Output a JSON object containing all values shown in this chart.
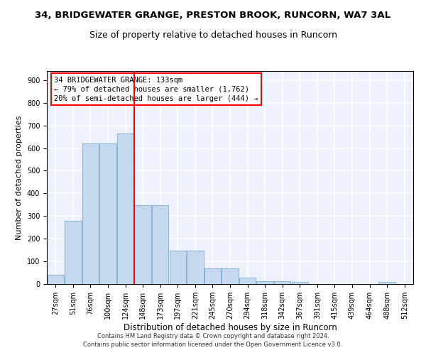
{
  "title": "34, BRIDGEWATER GRANGE, PRESTON BROOK, RUNCORN, WA7 3AL",
  "subtitle": "Size of property relative to detached houses in Runcorn",
  "xlabel": "Distribution of detached houses by size in Runcorn",
  "ylabel": "Number of detached properties",
  "bar_labels": [
    "27sqm",
    "51sqm",
    "76sqm",
    "100sqm",
    "124sqm",
    "148sqm",
    "173sqm",
    "197sqm",
    "221sqm",
    "245sqm",
    "270sqm",
    "294sqm",
    "318sqm",
    "342sqm",
    "367sqm",
    "391sqm",
    "415sqm",
    "439sqm",
    "464sqm",
    "488sqm",
    "512sqm"
  ],
  "bar_values": [
    42,
    280,
    620,
    620,
    665,
    348,
    348,
    148,
    148,
    68,
    68,
    27,
    14,
    11,
    10,
    0,
    0,
    0,
    0,
    8,
    0
  ],
  "bar_color": "#c5d8f0",
  "bar_edgecolor": "#7aadd4",
  "vline_x": 4.5,
  "vline_color": "red",
  "annotation_text": "34 BRIDGEWATER GRANGE: 133sqm\n← 79% of detached houses are smaller (1,762)\n20% of semi-detached houses are larger (444) →",
  "annotation_box_facecolor": "white",
  "annotation_box_edgecolor": "red",
  "ylim": [
    0,
    940
  ],
  "yticks": [
    0,
    100,
    200,
    300,
    400,
    500,
    600,
    700,
    800,
    900
  ],
  "background_color": "#edf1fb",
  "grid_color": "white",
  "title_fontsize": 9.5,
  "subtitle_fontsize": 9,
  "ylabel_fontsize": 8,
  "xlabel_fontsize": 8.5,
  "tick_fontsize": 7,
  "annot_fontsize": 7.5,
  "footer_line1": "Contains HM Land Registry data © Crown copyright and database right 2024.",
  "footer_line2": "Contains public sector information licensed under the Open Government Licence v3.0."
}
